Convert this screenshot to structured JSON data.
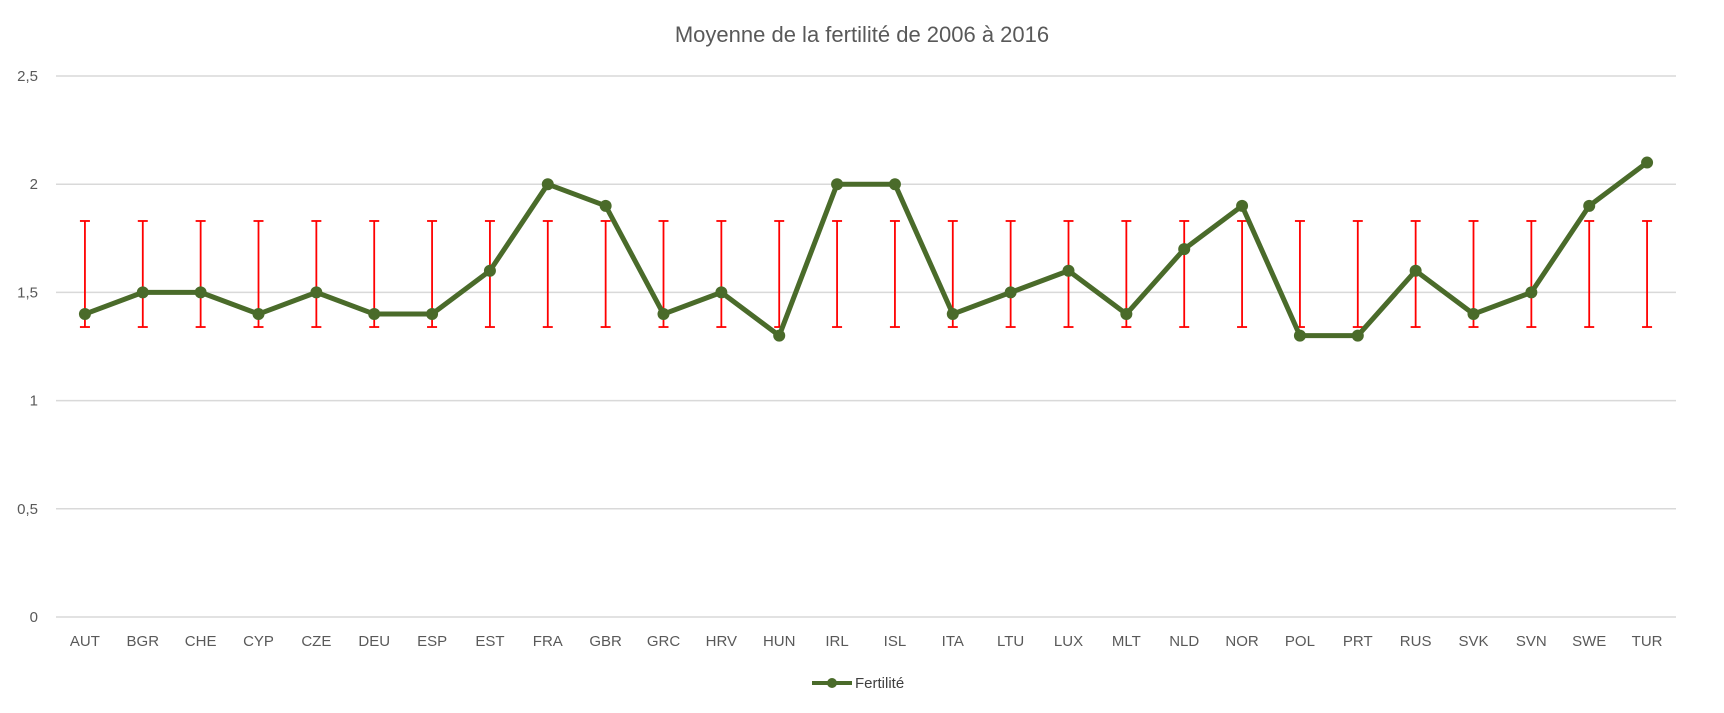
{
  "chart_data": {
    "type": "line",
    "title": "Moyenne de la fertilité de 2006 à 2016",
    "categories": [
      "AUT",
      "BGR",
      "CHE",
      "CYP",
      "CZE",
      "DEU",
      "ESP",
      "EST",
      "FRA",
      "GBR",
      "GRC",
      "HRV",
      "HUN",
      "IRL",
      "ISL",
      "ITA",
      "LTU",
      "LUX",
      "MLT",
      "NLD",
      "NOR",
      "POL",
      "PRT",
      "RUS",
      "SVK",
      "SVN",
      "SWE",
      "TUR"
    ],
    "series": [
      {
        "name": "Fertilité",
        "values": [
          1.4,
          1.5,
          1.5,
          1.4,
          1.5,
          1.4,
          1.4,
          1.6,
          2.0,
          1.9,
          1.4,
          1.5,
          1.3,
          2.0,
          2.0,
          1.4,
          1.5,
          1.6,
          1.4,
          1.7,
          1.9,
          1.3,
          1.3,
          1.6,
          1.4,
          1.5,
          1.9,
          2.1
        ],
        "color": "#4a6b2a",
        "error_bars": {
          "lower": 1.34,
          "upper": 1.83,
          "color": "#ff0000"
        }
      }
    ],
    "ylim": [
      0,
      2.5
    ],
    "yticks": [
      0,
      0.5,
      1,
      1.5,
      2,
      2.5
    ],
    "ytick_labels": [
      "0",
      "0,5",
      "1",
      "1,5",
      "2",
      "2,5"
    ],
    "grid": true,
    "gridline_color": "#d9d9d9",
    "legend_position": "bottom"
  }
}
